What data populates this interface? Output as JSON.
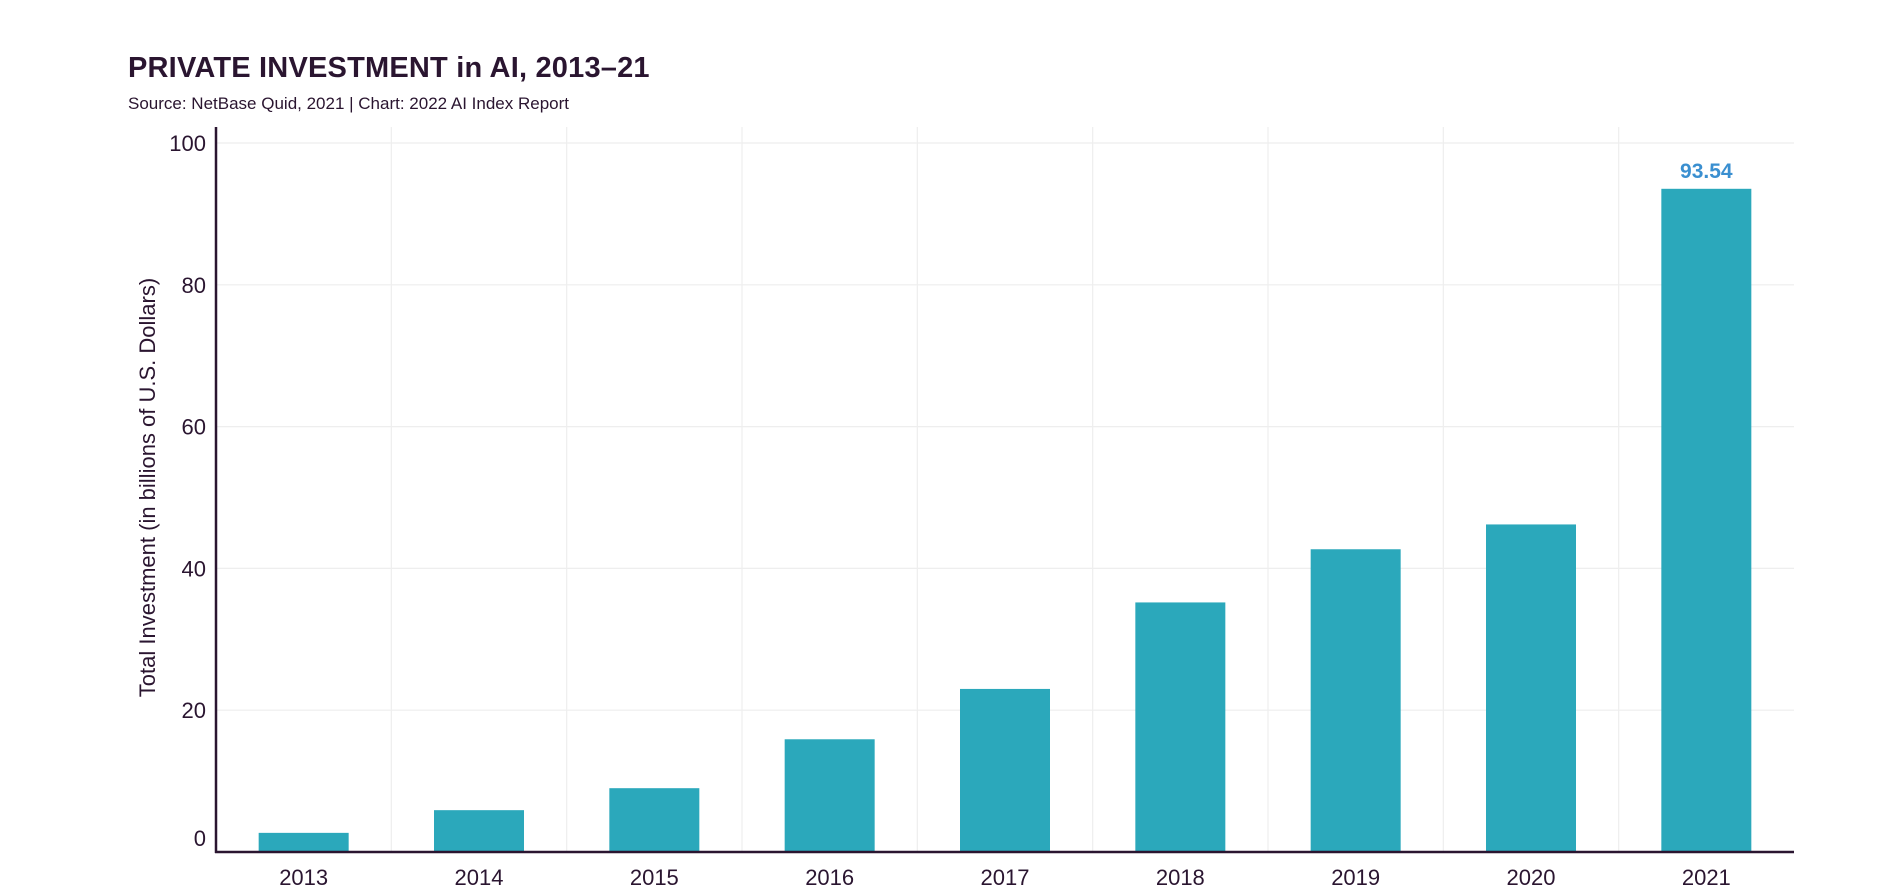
{
  "header": {
    "title": "PRIVATE INVESTMENT in AI, 2013–21",
    "subtitle": "Source: NetBase Quid, 2021 | Chart: 2022 AI Index Report"
  },
  "colors": {
    "bar": "#2ba8bb",
    "data_label": "#3a8fd0",
    "axis": "#2a1530",
    "grid": "#eeeeee",
    "text": "#2a1530"
  },
  "chart_data": {
    "type": "bar",
    "title": "PRIVATE INVESTMENT in AI, 2013–21",
    "subtitle": "Source: NetBase Quid, 2021 | Chart: 2022 AI Index Report",
    "xlabel": "",
    "ylabel": "Total Investment (in billions of U.S. Dollars)",
    "categories": [
      "2013",
      "2014",
      "2015",
      "2016",
      "2017",
      "2018",
      "2019",
      "2020",
      "2021"
    ],
    "values": [
      2.7,
      5.9,
      9.0,
      15.9,
      23.0,
      35.2,
      42.7,
      46.2,
      93.54
    ],
    "data_labels": [
      {
        "category": "2021",
        "text": "93.54"
      }
    ],
    "yticks": [
      0,
      20,
      40,
      60,
      80,
      100
    ],
    "ylim": [
      0,
      100
    ],
    "grid": true,
    "legend": "none"
  }
}
